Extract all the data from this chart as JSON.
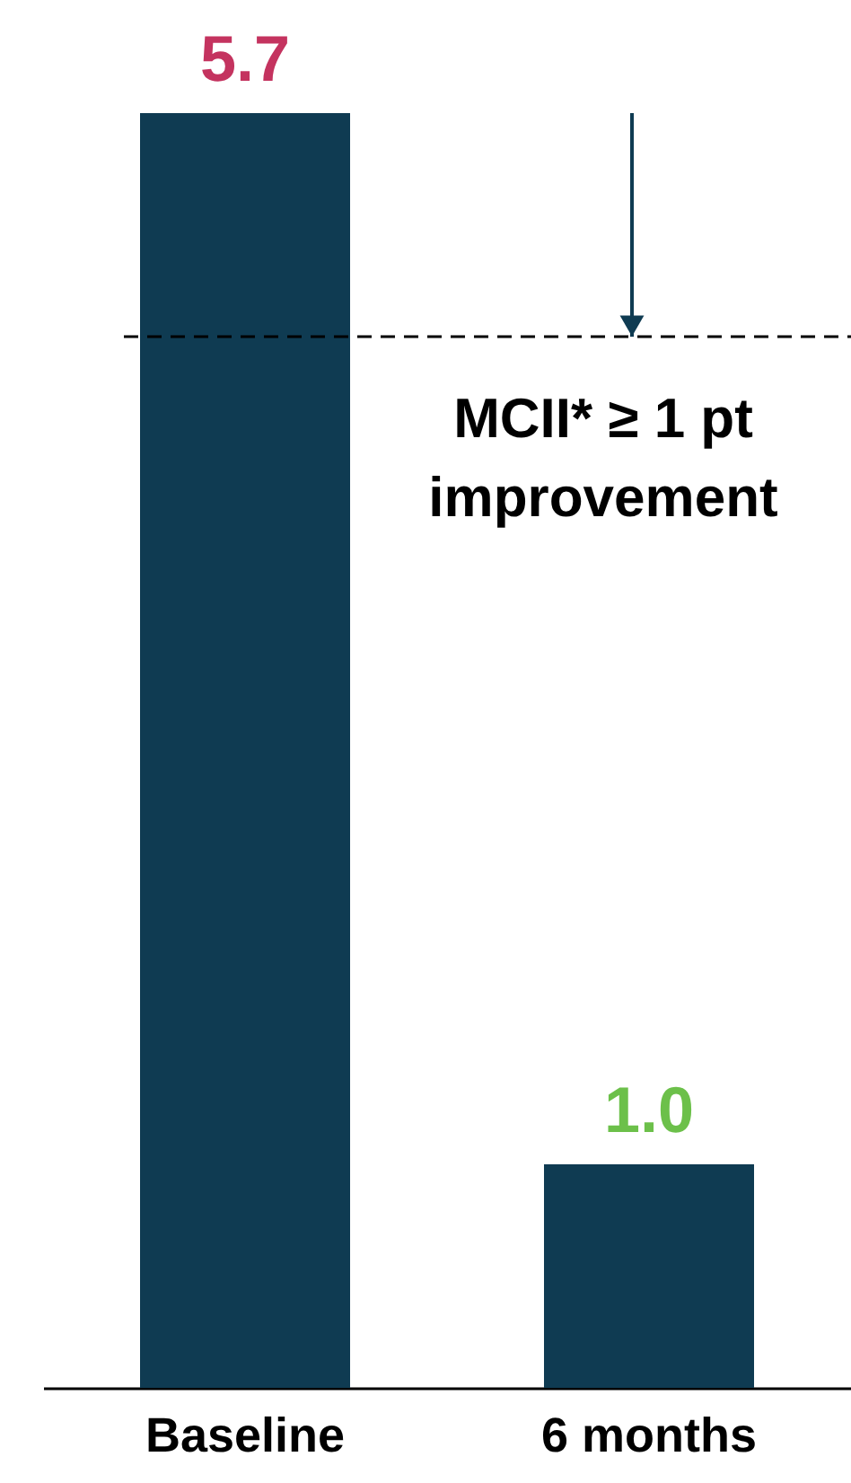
{
  "chart_data": {
    "type": "bar",
    "categories": [
      "Baseline",
      "6 months"
    ],
    "values": [
      5.7,
      1.0
    ],
    "color": "#0f3b52",
    "value_labels": [
      "5.7",
      "1.0"
    ],
    "grid": false,
    "ref_lines": [
      {
        "axis": "y",
        "value": 4.7,
        "color": "#000000",
        "line_style": "dashed"
      }
    ],
    "annotations": [
      {
        "text": "MCII* ≥ 1 pt\nimprovement",
        "y": 4.7
      }
    ]
  }
}
